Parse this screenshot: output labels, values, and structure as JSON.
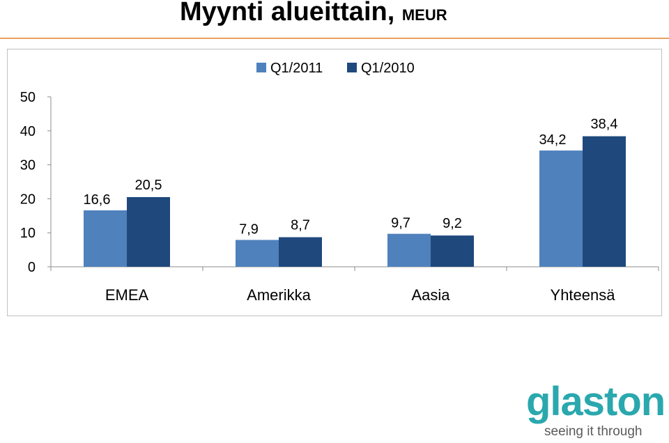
{
  "page": {
    "title_main": "Myynti alueittain,",
    "title_unit": "MEUR"
  },
  "logo": {
    "word": "glaston",
    "tagline": "seeing it through",
    "color": "#2aa8ae"
  },
  "chart_data": {
    "type": "bar",
    "title": "",
    "xlabel": "",
    "ylabel": "",
    "categories": [
      "EMEA",
      "Amerikka",
      "Aasia",
      "Yhteensä"
    ],
    "series": [
      {
        "name": "Q1/2011",
        "color": "#4f81bd",
        "values": [
          16.6,
          7.9,
          9.7,
          34.2
        ],
        "labels": [
          "16,6",
          "7,9",
          "9,7",
          "34,2"
        ]
      },
      {
        "name": "Q1/2010",
        "color": "#1f497d",
        "values": [
          20.5,
          8.7,
          9.2,
          38.4
        ],
        "labels": [
          "20,5",
          "8,7",
          "9,2",
          "38,4"
        ]
      }
    ],
    "ylim": [
      0,
      50
    ],
    "yticks": [
      0,
      10,
      20,
      30,
      40,
      50
    ],
    "ytick_labels": [
      "0",
      "10",
      "20",
      "30",
      "40",
      "50"
    ],
    "grid": false,
    "legend": "top-center"
  }
}
